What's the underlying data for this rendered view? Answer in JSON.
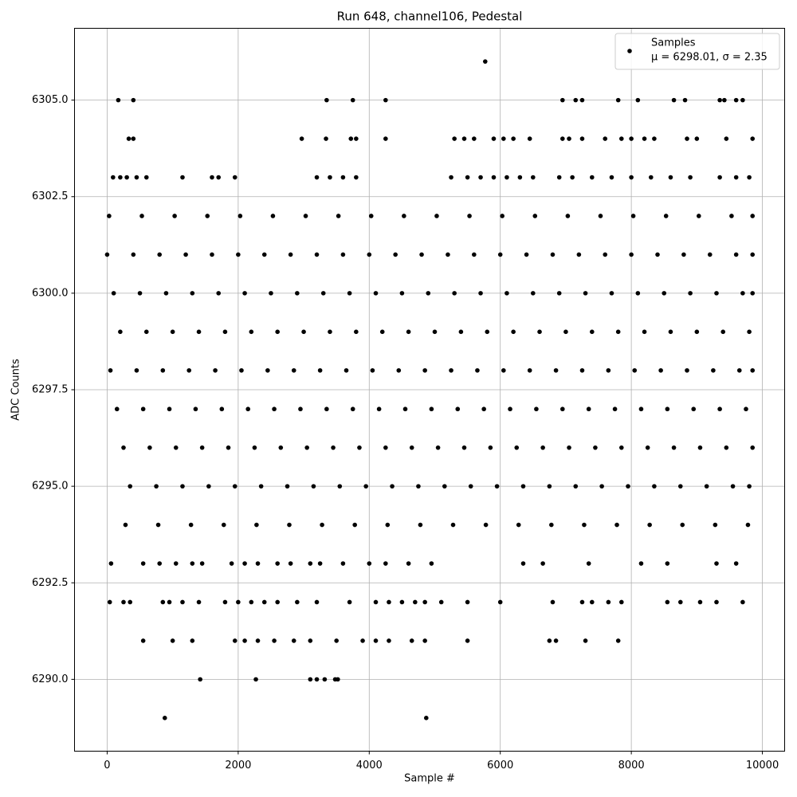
{
  "chart_data": {
    "type": "scatter",
    "title": "Run 648, channel106, Pedestal",
    "xlabel": "Sample #",
    "ylabel": "ADC Counts",
    "legend_text": "μ = 6298.01, σ = 2.35",
    "legend": "upper right",
    "grid": true,
    "xlim": [
      -498,
      10340
    ],
    "xticks": [
      0,
      2000,
      4000,
      6000,
      8000,
      10000
    ],
    "ylim": [
      6288.14,
      6306.86
    ],
    "yticks": [
      {
        "value": 6290,
        "label": "6290.0"
      },
      {
        "value": 6292.5,
        "label": "6292.5"
      },
      {
        "value": 6295,
        "label": "6295.0"
      },
      {
        "value": 6297.5,
        "label": "6297.5"
      },
      {
        "value": 6300,
        "label": "6300.0"
      },
      {
        "value": 6302.5,
        "label": "6302.5"
      },
      {
        "value": 6305,
        "label": "6305.0"
      }
    ],
    "x": [
      5770,
      170,
      400,
      3350,
      3750,
      4250,
      6950,
      7150,
      7250,
      7800,
      8100,
      8650,
      8820,
      9350,
      9420,
      9600,
      9700,
      330,
      400,
      2970,
      3340,
      3720,
      3800,
      4250,
      5300,
      5450,
      5600,
      5900,
      6050,
      6200,
      6450,
      6950,
      7050,
      7250,
      7600,
      7850,
      8000,
      8200,
      8350,
      8850,
      9000,
      9450,
      9850,
      90,
      200,
      300,
      450,
      600,
      1150,
      1600,
      1700,
      1950,
      3200,
      3400,
      3600,
      3800,
      5250,
      5500,
      5700,
      5900,
      6100,
      6300,
      6500,
      6900,
      7100,
      7400,
      7700,
      8000,
      8300,
      8600,
      8900,
      9350,
      9600,
      9800,
      30,
      530,
      1030,
      1530,
      2030,
      2530,
      3030,
      3530,
      4030,
      4530,
      5030,
      5530,
      6030,
      6530,
      7030,
      7530,
      8030,
      8530,
      9030,
      9530,
      9850,
      0,
      400,
      800,
      1200,
      1600,
      2000,
      2400,
      2800,
      3200,
      3600,
      4000,
      4400,
      4800,
      5200,
      5600,
      6000,
      6400,
      6800,
      7200,
      7600,
      8000,
      8400,
      8800,
      9200,
      9600,
      9850,
      100,
      500,
      900,
      1300,
      1700,
      2100,
      2500,
      2900,
      3300,
      3700,
      4100,
      4500,
      4900,
      5300,
      5700,
      6100,
      6500,
      6900,
      7300,
      7700,
      8100,
      8500,
      8900,
      9300,
      9700,
      9850,
      200,
      600,
      1000,
      1400,
      1800,
      2200,
      2600,
      3000,
      3400,
      3800,
      4200,
      4600,
      5000,
      5400,
      5800,
      6200,
      6600,
      7000,
      7400,
      7800,
      8200,
      8600,
      9000,
      9400,
      9800,
      50,
      450,
      850,
      1250,
      1650,
      2050,
      2450,
      2850,
      3250,
      3650,
      4050,
      4450,
      4850,
      5250,
      5650,
      6050,
      6450,
      6850,
      7250,
      7650,
      8050,
      8450,
      8850,
      9250,
      9650,
      9850,
      150,
      550,
      950,
      1350,
      1750,
      2150,
      2550,
      2950,
      3350,
      3750,
      4150,
      4550,
      4950,
      5350,
      5750,
      6150,
      6550,
      6950,
      7350,
      7750,
      8150,
      8550,
      8950,
      9350,
      9750,
      250,
      650,
      1050,
      1450,
      1850,
      2250,
      2650,
      3050,
      3450,
      3850,
      4250,
      4650,
      5050,
      5450,
      5850,
      6250,
      6650,
      7050,
      7450,
      7850,
      8250,
      8650,
      9050,
      9450,
      9850,
      350,
      750,
      1150,
      1550,
      1950,
      2350,
      2750,
      3150,
      3550,
      3950,
      4350,
      4750,
      5150,
      5550,
      5950,
      6350,
      6750,
      7150,
      7550,
      7950,
      8350,
      8750,
      9150,
      9550,
      9800,
      280,
      780,
      1280,
      1780,
      2280,
      2780,
      3280,
      3780,
      4280,
      4780,
      5280,
      5780,
      6280,
      6780,
      7280,
      7780,
      8280,
      8780,
      9280,
      9780,
      60,
      550,
      800,
      1050,
      1300,
      1450,
      1900,
      2100,
      2300,
      2600,
      2800,
      3100,
      3250,
      3600,
      4000,
      4250,
      4600,
      4950,
      6350,
      6650,
      7350,
      8150,
      8550,
      9300,
      9600,
      40,
      250,
      350,
      850,
      950,
      1150,
      1400,
      1800,
      2000,
      2200,
      2400,
      2600,
      2900,
      3200,
      3700,
      4100,
      4300,
      4500,
      4700,
      4850,
      5100,
      5500,
      6000,
      6800,
      7250,
      7400,
      7650,
      7850,
      8550,
      8750,
      9050,
      9300,
      9700,
      550,
      1000,
      1300,
      1950,
      2100,
      2300,
      2550,
      2850,
      3100,
      3500,
      3900,
      4100,
      4300,
      4650,
      4850,
      5500,
      6750,
      6850,
      7300,
      7800,
      1420,
      2270,
      3100,
      3200,
      3320,
      3480,
      3520,
      880,
      4870
    ],
    "series": [
      {
        "name": "Samples",
        "color": "#000000",
        "values": [
          6306,
          6305,
          6305,
          6305,
          6305,
          6305,
          6305,
          6305,
          6305,
          6305,
          6305,
          6305,
          6305,
          6305,
          6305,
          6305,
          6305,
          6304,
          6304,
          6304,
          6304,
          6304,
          6304,
          6304,
          6304,
          6304,
          6304,
          6304,
          6304,
          6304,
          6304,
          6304,
          6304,
          6304,
          6304,
          6304,
          6304,
          6304,
          6304,
          6304,
          6304,
          6304,
          6304,
          6303,
          6303,
          6303,
          6303,
          6303,
          6303,
          6303,
          6303,
          6303,
          6303,
          6303,
          6303,
          6303,
          6303,
          6303,
          6303,
          6303,
          6303,
          6303,
          6303,
          6303,
          6303,
          6303,
          6303,
          6303,
          6303,
          6303,
          6303,
          6303,
          6303,
          6303,
          6302,
          6302,
          6302,
          6302,
          6302,
          6302,
          6302,
          6302,
          6302,
          6302,
          6302,
          6302,
          6302,
          6302,
          6302,
          6302,
          6302,
          6302,
          6302,
          6302,
          6302,
          6301,
          6301,
          6301,
          6301,
          6301,
          6301,
          6301,
          6301,
          6301,
          6301,
          6301,
          6301,
          6301,
          6301,
          6301,
          6301,
          6301,
          6301,
          6301,
          6301,
          6301,
          6301,
          6301,
          6301,
          6301,
          6301,
          6300,
          6300,
          6300,
          6300,
          6300,
          6300,
          6300,
          6300,
          6300,
          6300,
          6300,
          6300,
          6300,
          6300,
          6300,
          6300,
          6300,
          6300,
          6300,
          6300,
          6300,
          6300,
          6300,
          6300,
          6300,
          6300,
          6299,
          6299,
          6299,
          6299,
          6299,
          6299,
          6299,
          6299,
          6299,
          6299,
          6299,
          6299,
          6299,
          6299,
          6299,
          6299,
          6299,
          6299,
          6299,
          6299,
          6299,
          6299,
          6299,
          6299,
          6299,
          6298,
          6298,
          6298,
          6298,
          6298,
          6298,
          6298,
          6298,
          6298,
          6298,
          6298,
          6298,
          6298,
          6298,
          6298,
          6298,
          6298,
          6298,
          6298,
          6298,
          6298,
          6298,
          6298,
          6298,
          6298,
          6298,
          6297,
          6297,
          6297,
          6297,
          6297,
          6297,
          6297,
          6297,
          6297,
          6297,
          6297,
          6297,
          6297,
          6297,
          6297,
          6297,
          6297,
          6297,
          6297,
          6297,
          6297,
          6297,
          6297,
          6297,
          6297,
          6296,
          6296,
          6296,
          6296,
          6296,
          6296,
          6296,
          6296,
          6296,
          6296,
          6296,
          6296,
          6296,
          6296,
          6296,
          6296,
          6296,
          6296,
          6296,
          6296,
          6296,
          6296,
          6296,
          6296,
          6296,
          6295,
          6295,
          6295,
          6295,
          6295,
          6295,
          6295,
          6295,
          6295,
          6295,
          6295,
          6295,
          6295,
          6295,
          6295,
          6295,
          6295,
          6295,
          6295,
          6295,
          6295,
          6295,
          6295,
          6295,
          6295,
          6294,
          6294,
          6294,
          6294,
          6294,
          6294,
          6294,
          6294,
          6294,
          6294,
          6294,
          6294,
          6294,
          6294,
          6294,
          6294,
          6294,
          6294,
          6294,
          6294,
          6293,
          6293,
          6293,
          6293,
          6293,
          6293,
          6293,
          6293,
          6293,
          6293,
          6293,
          6293,
          6293,
          6293,
          6293,
          6293,
          6293,
          6293,
          6293,
          6293,
          6293,
          6293,
          6293,
          6293,
          6293,
          6292,
          6292,
          6292,
          6292,
          6292,
          6292,
          6292,
          6292,
          6292,
          6292,
          6292,
          6292,
          6292,
          6292,
          6292,
          6292,
          6292,
          6292,
          6292,
          6292,
          6292,
          6292,
          6292,
          6292,
          6292,
          6292,
          6292,
          6292,
          6292,
          6292,
          6292,
          6292,
          6292,
          6291,
          6291,
          6291,
          6291,
          6291,
          6291,
          6291,
          6291,
          6291,
          6291,
          6291,
          6291,
          6291,
          6291,
          6291,
          6291,
          6291,
          6291,
          6291,
          6291,
          6290,
          6290,
          6290,
          6290,
          6290,
          6290,
          6290,
          6289,
          6289
        ]
      }
    ]
  }
}
